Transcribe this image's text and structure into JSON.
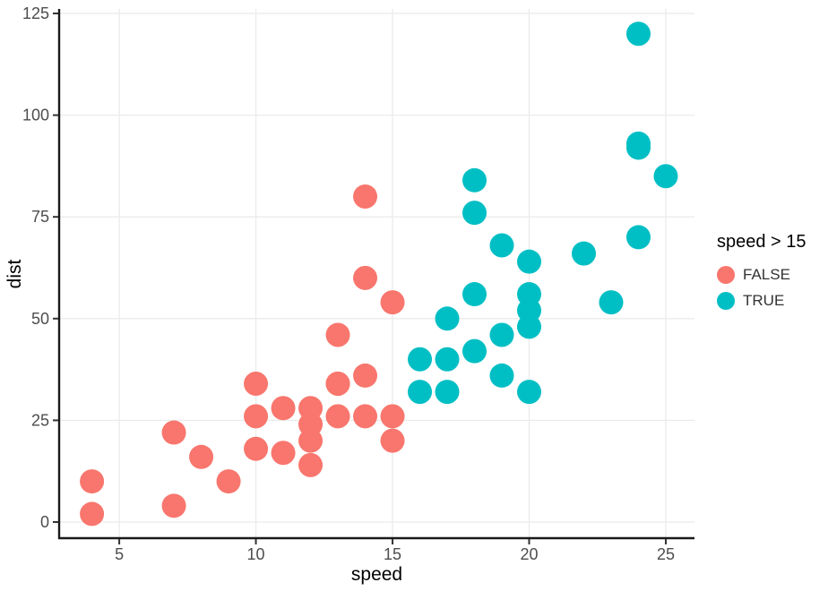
{
  "chart_data": {
    "type": "scatter",
    "title": "",
    "xlabel": "speed",
    "ylabel": "dist",
    "x_ticks": [
      5,
      10,
      15,
      20,
      25
    ],
    "y_ticks": [
      0,
      25,
      50,
      75,
      100,
      125
    ],
    "xlim": [
      2.8,
      26.05
    ],
    "ylim": [
      -3.96,
      126.1
    ],
    "grid": "major-only",
    "legend": {
      "title": "speed > 15",
      "position": "right",
      "entries": [
        {
          "label": "FALSE",
          "color": "#F8766D"
        },
        {
          "label": "TRUE",
          "color": "#00BFC4"
        }
      ]
    },
    "series": [
      {
        "name": "FALSE",
        "color": "#F8766D",
        "points": [
          [
            4,
            2
          ],
          [
            4,
            10
          ],
          [
            7,
            4
          ],
          [
            7,
            22
          ],
          [
            8,
            16
          ],
          [
            9,
            10
          ],
          [
            10,
            18
          ],
          [
            10,
            26
          ],
          [
            10,
            34
          ],
          [
            11,
            17
          ],
          [
            11,
            28
          ],
          [
            12,
            14
          ],
          [
            12,
            20
          ],
          [
            12,
            24
          ],
          [
            12,
            28
          ],
          [
            13,
            26
          ],
          [
            13,
            34
          ],
          [
            13,
            34
          ],
          [
            13,
            46
          ],
          [
            14,
            26
          ],
          [
            14,
            36
          ],
          [
            14,
            60
          ],
          [
            14,
            80
          ],
          [
            15,
            20
          ],
          [
            15,
            26
          ],
          [
            15,
            54
          ]
        ]
      },
      {
        "name": "TRUE",
        "color": "#00BFC4",
        "points": [
          [
            16,
            32
          ],
          [
            16,
            40
          ],
          [
            17,
            32
          ],
          [
            17,
            40
          ],
          [
            17,
            50
          ],
          [
            18,
            42
          ],
          [
            18,
            56
          ],
          [
            18,
            76
          ],
          [
            18,
            84
          ],
          [
            19,
            36
          ],
          [
            19,
            46
          ],
          [
            19,
            68
          ],
          [
            20,
            32
          ],
          [
            20,
            48
          ],
          [
            20,
            52
          ],
          [
            20,
            56
          ],
          [
            20,
            64
          ],
          [
            22,
            66
          ],
          [
            23,
            54
          ],
          [
            24,
            70
          ],
          [
            24,
            92
          ],
          [
            24,
            93
          ],
          [
            24,
            120
          ],
          [
            25,
            85
          ]
        ]
      }
    ]
  },
  "style": {
    "background": "#FFFFFF",
    "grid_color": "#EBEBEB",
    "axis_line_color": "#1A1A1A",
    "tick_mark_color": "#333333",
    "tick_label_color": "#4D4D4D",
    "axis_title_color": "#000000",
    "point_radius": 13.5
  }
}
